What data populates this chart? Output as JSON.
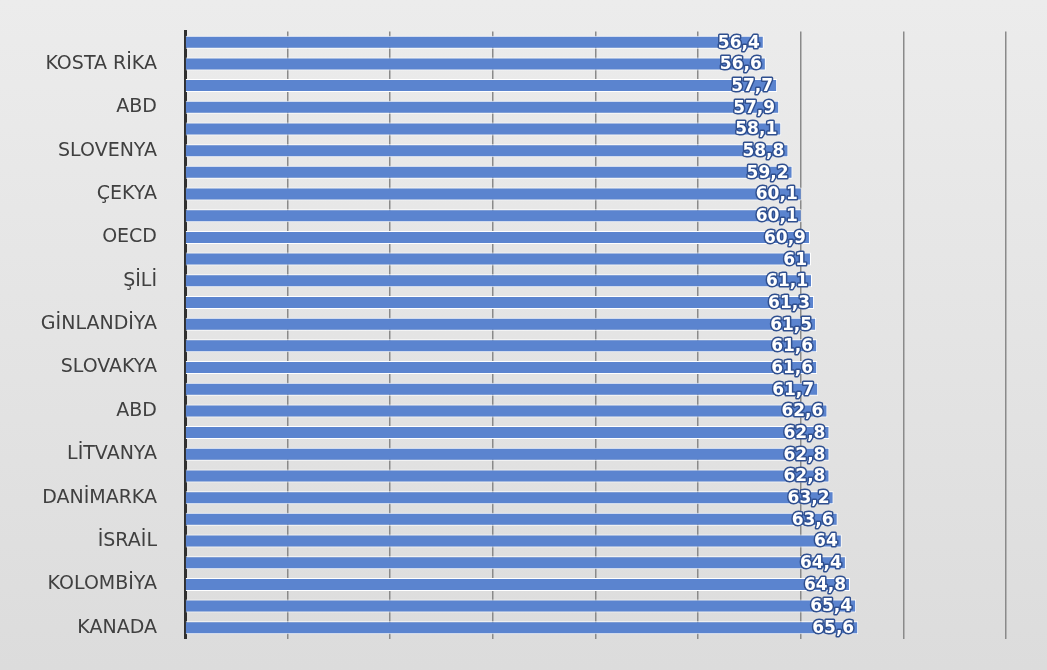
{
  "chart_data": {
    "type": "bar",
    "orientation": "horizontal",
    "categories": [
      null,
      "KOSTA RİKA",
      null,
      "ABD",
      null,
      "SLOVENYA",
      null,
      "ÇEKYA",
      null,
      "OECD",
      null,
      "ŞİLİ",
      null,
      "GİNLANDİYA",
      null,
      "SLOVAKYA",
      null,
      "ABD",
      null,
      "LİTVANYA",
      null,
      "DANİMARKA",
      null,
      "İSRAİL",
      null,
      "KOLOMBİYA",
      null,
      "KANADA"
    ],
    "values": [
      56.4,
      56.6,
      57.7,
      57.9,
      58.1,
      58.8,
      59.2,
      60.1,
      60.1,
      60.9,
      61,
      61.1,
      61.3,
      61.5,
      61.6,
      61.6,
      61.7,
      62.6,
      62.8,
      62.8,
      62.8,
      63.2,
      63.6,
      64,
      64.4,
      64.8,
      65.4,
      65.6
    ],
    "value_labels": [
      "56,4",
      "56,6",
      "57,7",
      "57,9",
      "58,1",
      "58,8",
      "59,2",
      "60,1",
      "60,1",
      "60,9",
      "61",
      "61,1",
      "61,3",
      "61,5",
      "61,6",
      "61,6",
      "61,7",
      "62,6",
      "62,8",
      "62,8",
      "62,8",
      "63,2",
      "63,6",
      "64",
      "64,4",
      "64,8",
      "65,4",
      "65,6"
    ],
    "color": "#5b84cf",
    "xlim": [
      0,
      84
    ],
    "xticks": [
      {
        "value": 0,
        "label": null
      },
      {
        "value": 10,
        "label": null
      },
      {
        "value": 20,
        "label": null
      },
      {
        "value": 30,
        "label": null
      },
      {
        "value": 40,
        "label": null
      },
      {
        "value": 50,
        "label": null
      },
      {
        "value": 60,
        "label": null
      },
      {
        "value": 70,
        "label": null
      },
      {
        "value": 80,
        "label": null
      }
    ],
    "grid": "x",
    "tick_labels": "y",
    "legend": false
  }
}
